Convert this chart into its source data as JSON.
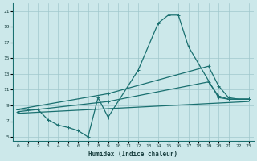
{
  "title": "",
  "xlabel": "Humidex (Indice chaleur)",
  "ylabel": "",
  "xlim": [
    -0.5,
    23.5
  ],
  "ylim": [
    4.5,
    22
  ],
  "xticks": [
    0,
    1,
    2,
    3,
    4,
    5,
    6,
    7,
    8,
    9,
    10,
    11,
    12,
    13,
    14,
    15,
    16,
    17,
    18,
    19,
    20,
    21,
    22,
    23
  ],
  "yticks": [
    5,
    7,
    9,
    11,
    13,
    15,
    17,
    19,
    21
  ],
  "background_color": "#cce8ea",
  "grid_color": "#a0c8cc",
  "line_color": "#1a7070",
  "line1_x": [
    0,
    1,
    2,
    3,
    4,
    5,
    6,
    7,
    8,
    9,
    12,
    13,
    14,
    15,
    16,
    17,
    20,
    21,
    22,
    23
  ],
  "line1_y": [
    8.5,
    8.5,
    8.5,
    7.2,
    6.5,
    6.2,
    5.8,
    5.0,
    10.0,
    7.5,
    13.5,
    16.5,
    19.5,
    20.5,
    20.5,
    16.5,
    10.0,
    9.8,
    9.8,
    9.8
  ],
  "line2_x": [
    0,
    9,
    19,
    20,
    21,
    22,
    23
  ],
  "line2_y": [
    8.5,
    10.5,
    14.0,
    11.5,
    10.0,
    9.8,
    9.8
  ],
  "line3_x": [
    0,
    9,
    19,
    20,
    21,
    22,
    23
  ],
  "line3_y": [
    8.2,
    9.5,
    12.0,
    10.2,
    9.8,
    9.8,
    9.8
  ],
  "line4_x": [
    0,
    23
  ],
  "line4_y": [
    8.0,
    9.5
  ]
}
